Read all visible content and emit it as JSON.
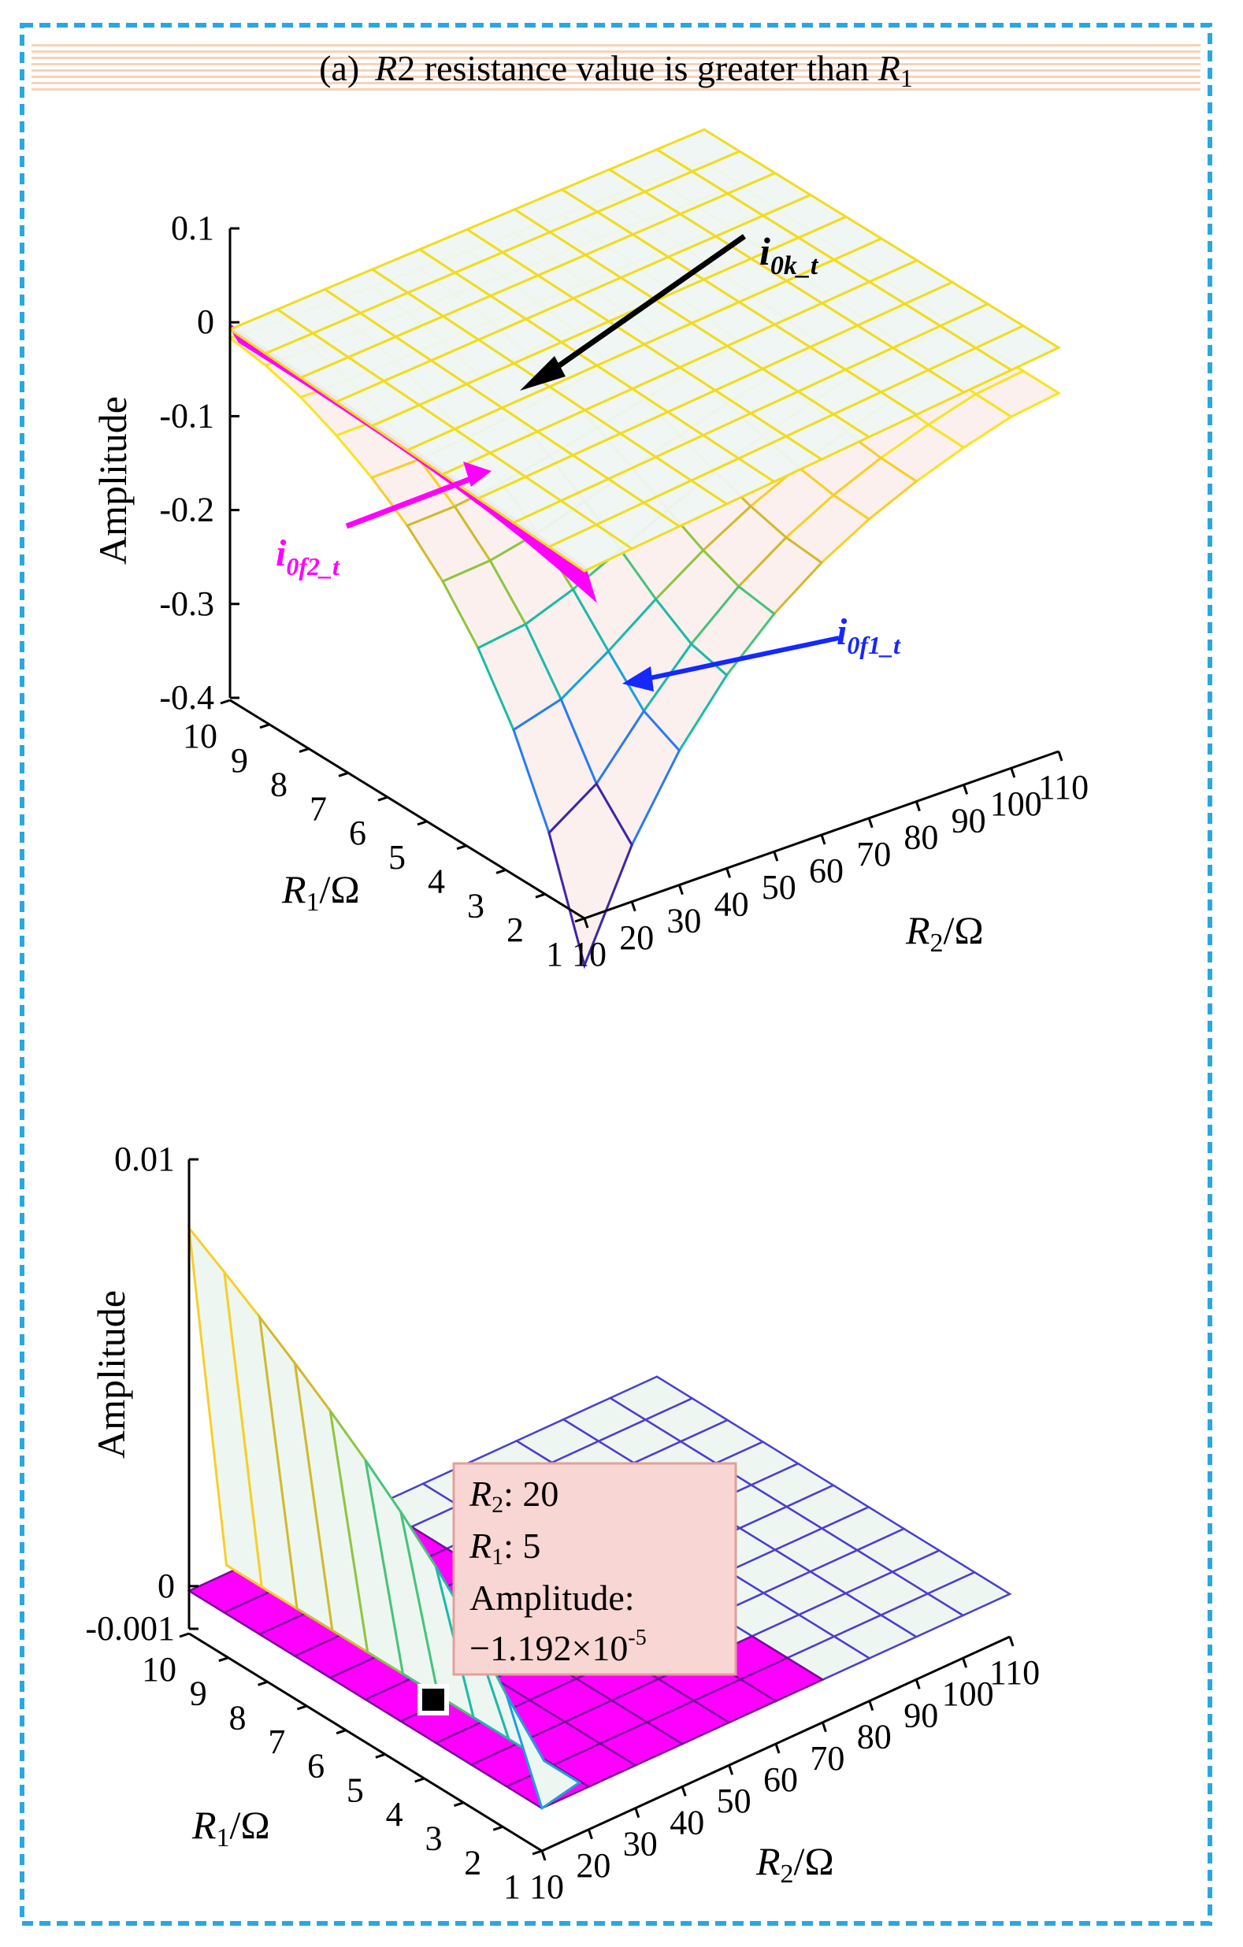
{
  "figure": {
    "title_prefix": "(a)",
    "title_var": "R",
    "title_mid": "2 resistance value is greater than ",
    "title_end_var": "R",
    "title_end_sub": "1"
  },
  "colors": {
    "frame": "#29a8e0",
    "banner_stripe": "#f6d3b8",
    "series_k_fill": "#eef6f2",
    "series_k_edge": "#f2dc1c",
    "series_f1_fill": "#fbf0ee",
    "series_f2": "#ff00ff",
    "arrow_k": "#000000",
    "arrow_f1": "#1428ff",
    "arrow_f2": "#ff00ff",
    "tooltip_bg": "#f8d6d4",
    "tooltip_border": "#e2a09a"
  },
  "chart_data": [
    {
      "type": "surface3d",
      "zlabel": "Amplitude",
      "xlabel_var": "R",
      "xlabel_sub": "2",
      "xlabel_unit": "/Ω",
      "ylabel_var": "R",
      "ylabel_sub": "1",
      "ylabel_unit": "/Ω",
      "x_ticks": [
        "10",
        "20",
        "30",
        "40",
        "50",
        "60",
        "70",
        "80",
        "90",
        "100",
        "110"
      ],
      "y_ticks": [
        "1",
        "2",
        "3",
        "4",
        "5",
        "6",
        "7",
        "8",
        "9",
        "10"
      ],
      "z_ticks": [
        "0.1",
        "0",
        "-0.1",
        "-0.2",
        "-0.3",
        "-0.4"
      ],
      "zlim": [
        -0.4,
        0.1
      ],
      "series": [
        {
          "name": "i_0k_t",
          "label_base": "i",
          "label_sub": "0k_t",
          "values": "approximately flat at 0 over R2 = 10–110, R1 = 1–10"
        },
        {
          "name": "i_0f1_t",
          "label_base": "i",
          "label_sub": "0f1_t",
          "values": "negative valley reaching about -0.4 at R2 = 10, R1 = 1; rising toward -0.05 at large R1 and R2"
        },
        {
          "name": "i_0f2_t",
          "label_base": "i",
          "label_sub": "0f2_t",
          "values": "approximately 0 along the R2 = 10 edge"
        }
      ],
      "annotations": [
        "i_0k_t",
        "i_0f2_t",
        "i_0f1_t"
      ]
    },
    {
      "type": "surface3d",
      "zlabel": "Amplitude",
      "xlabel_var": "R",
      "xlabel_sub": "2",
      "xlabel_unit": "/Ω",
      "ylabel_var": "R",
      "ylabel_sub": "1",
      "ylabel_unit": "/Ω",
      "x_ticks": [
        "10",
        "20",
        "30",
        "40",
        "50",
        "60",
        "70",
        "80",
        "90",
        "100",
        "110"
      ],
      "y_ticks": [
        "1",
        "2",
        "3",
        "4",
        "5",
        "6",
        "7",
        "8",
        "9",
        "10"
      ],
      "z_ticks": [
        "0.01",
        "0",
        "-0.001"
      ],
      "zlim": [
        -0.001,
        0.01
      ],
      "datatip": {
        "x_label": "R",
        "x_sub": "2",
        "x_value": "20",
        "y_label": "R",
        "y_sub": "1",
        "y_value": "5",
        "z_label": "Amplitude:",
        "z_value_base": "−1.192×10",
        "z_value_exp": "-5",
        "x": 20,
        "y": 5,
        "z": -1.192e-05
      }
    }
  ]
}
